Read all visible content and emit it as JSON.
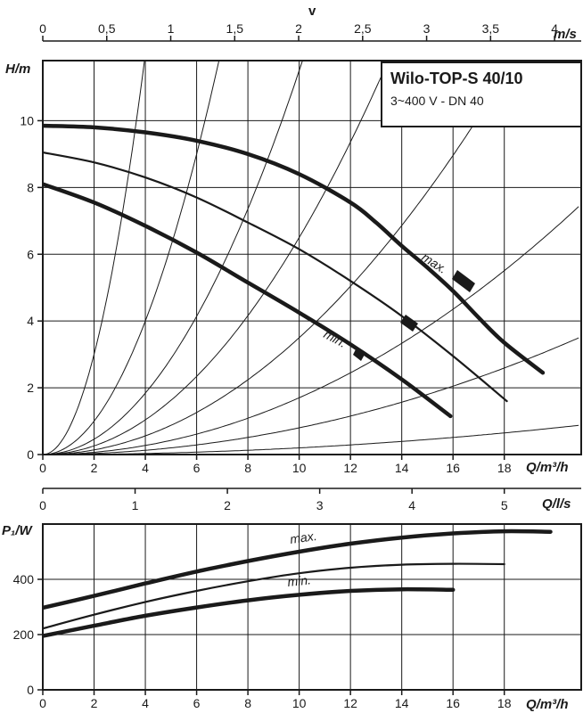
{
  "chart_data": [
    {
      "type": "line",
      "name": "head-curve",
      "title": "Wilo-TOP-S 40/10",
      "subtitle": "3~400 V - DN 40",
      "xlabel": "Q/m³/h",
      "ylabel": "H/m",
      "xlim": [
        0,
        21
      ],
      "ylim": [
        0,
        11.8
      ],
      "x_ticks": [
        "0",
        "2",
        "4",
        "6",
        "8",
        "10",
        "12",
        "14",
        "16",
        "18"
      ],
      "y_ticks": [
        "0",
        "2",
        "4",
        "6",
        "8",
        "10"
      ],
      "top_axis": {
        "label": "v",
        "unit": "m/s",
        "ticks": [
          "0",
          "0,5",
          "1",
          "1,5",
          "2",
          "2,5",
          "3",
          "3,5",
          "4"
        ],
        "values": [
          0,
          0.5,
          1,
          1.5,
          2,
          2.5,
          3,
          3.5,
          4
        ]
      },
      "series": [
        {
          "name": "max.",
          "x": [
            0,
            2,
            4,
            6,
            8,
            10,
            12,
            13,
            14,
            15,
            16,
            17,
            18,
            19.5
          ],
          "y": [
            9.85,
            9.8,
            9.65,
            9.4,
            9.0,
            8.4,
            7.55,
            6.95,
            6.25,
            5.6,
            4.9,
            4.1,
            3.35,
            2.45
          ]
        },
        {
          "name": "",
          "x": [
            0,
            2,
            4,
            6,
            8,
            10,
            12,
            14,
            16,
            18.1
          ],
          "y": [
            9.05,
            8.75,
            8.3,
            7.7,
            6.95,
            6.15,
            5.2,
            4.15,
            2.95,
            1.6
          ]
        },
        {
          "name": "min.",
          "x": [
            0,
            2,
            4,
            6,
            8,
            10,
            12,
            14,
            15.9
          ],
          "y": [
            8.1,
            7.55,
            6.85,
            6.05,
            5.15,
            4.25,
            3.3,
            2.25,
            1.15
          ]
        }
      ],
      "system_curve_k": [
        0.002,
        0.008,
        0.017,
        0.035,
        0.065,
        0.115,
        0.25,
        0.75
      ]
    },
    {
      "type": "line",
      "name": "power-curve",
      "xlabel": "Q/m³/h",
      "ylabel": "P₁/W",
      "xlim": [
        0,
        21
      ],
      "ylim": [
        0,
        600
      ],
      "x_ticks": [
        "0",
        "2",
        "4",
        "6",
        "8",
        "10",
        "12",
        "14",
        "16",
        "18"
      ],
      "y_ticks": [
        "0",
        "200",
        "400"
      ],
      "top_axis": {
        "label": "Q/l/s",
        "ticks": [
          "0",
          "1",
          "2",
          "3",
          "4",
          "5"
        ],
        "values": [
          0,
          1,
          2,
          3,
          4,
          5
        ]
      },
      "series": [
        {
          "name": "max.",
          "x": [
            0,
            2,
            4,
            6,
            8,
            10,
            12,
            14,
            16,
            18,
            19.8
          ],
          "y": [
            297,
            340,
            385,
            428,
            466,
            500,
            529,
            551,
            566,
            574,
            572
          ]
        },
        {
          "name": "",
          "x": [
            0,
            2,
            4,
            6,
            8,
            10,
            12,
            14,
            16,
            18
          ],
          "y": [
            222,
            272,
            318,
            358,
            393,
            422,
            442,
            453,
            456,
            455
          ]
        },
        {
          "name": "min.",
          "x": [
            0,
            2,
            4,
            6,
            8,
            10,
            12,
            14,
            16
          ],
          "y": [
            195,
            232,
            268,
            298,
            324,
            344,
            358,
            364,
            362
          ]
        }
      ]
    }
  ]
}
